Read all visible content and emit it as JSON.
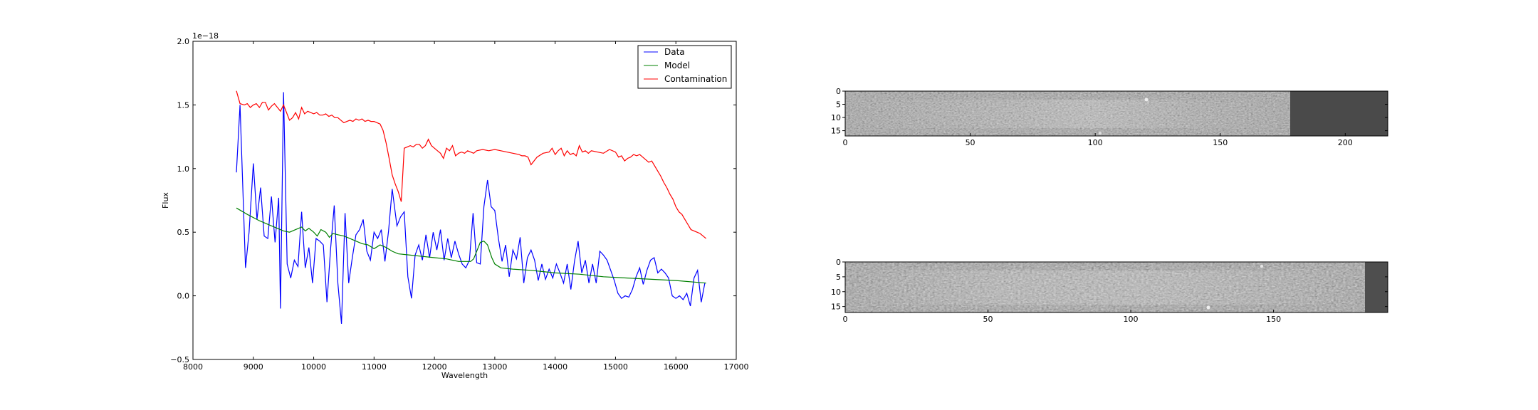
{
  "chart_data": [
    {
      "type": "line",
      "xlabel": "Wavelength",
      "ylabel": "Flux",
      "offset_text": "1e−18",
      "xlim": [
        8000,
        17000
      ],
      "ylim": [
        -0.5,
        2.0
      ],
      "xticks": [
        "8000",
        "9000",
        "10000",
        "11000",
        "12000",
        "13000",
        "14000",
        "15000",
        "16000",
        "17000"
      ],
      "yticks": [
        "−0.5",
        "0.0",
        "0.5",
        "1.0",
        "1.5",
        "2.0"
      ],
      "legend_position": "upper right",
      "grid": false,
      "series": [
        {
          "name": "Data",
          "color": "#0000ff",
          "x": [
            8720,
            8780,
            8870,
            8930,
            9000,
            9060,
            9120,
            9180,
            9240,
            9300,
            9360,
            9420,
            9450,
            9500,
            9560,
            9620,
            9680,
            9740,
            9800,
            9860,
            9920,
            9980,
            10040,
            10100,
            10160,
            10220,
            10280,
            10340,
            10400,
            10460,
            10520,
            10580,
            10640,
            10700,
            10760,
            10820,
            10880,
            10940,
            11000,
            11060,
            11120,
            11180,
            11240,
            11300,
            11380,
            11440,
            11500,
            11560,
            11620,
            11680,
            11740,
            11800,
            11860,
            11920,
            11980,
            12040,
            12100,
            12160,
            12220,
            12280,
            12340,
            12400,
            12460,
            12520,
            12580,
            12640,
            12700,
            12760,
            12820,
            12880,
            12940,
            13000,
            13060,
            13120,
            13180,
            13240,
            13300,
            13360,
            13420,
            13480,
            13540,
            13600,
            13660,
            13720,
            13780,
            13840,
            13900,
            13960,
            14020,
            14080,
            14140,
            14200,
            14260,
            14320,
            14380,
            14440,
            14500,
            14560,
            14620,
            14680,
            14740,
            14800,
            14860,
            14920,
            14980,
            15040,
            15100,
            15160,
            15220,
            15280,
            15340,
            15400,
            15460,
            15520,
            15580,
            15640,
            15700,
            15760,
            15820,
            15880,
            15940,
            16000,
            16060,
            16120,
            16180,
            16240,
            16300,
            16360,
            16420,
            16480
          ],
          "y": [
            0.97,
            1.5,
            0.22,
            0.5,
            1.04,
            0.6,
            0.85,
            0.47,
            0.45,
            0.78,
            0.42,
            0.77,
            -0.1,
            1.6,
            0.25,
            0.14,
            0.28,
            0.23,
            0.66,
            0.22,
            0.38,
            0.1,
            0.45,
            0.43,
            0.4,
            -0.05,
            0.37,
            0.71,
            0.1,
            -0.22,
            0.65,
            0.1,
            0.3,
            0.48,
            0.52,
            0.6,
            0.35,
            0.28,
            0.5,
            0.45,
            0.52,
            0.27,
            0.51,
            0.84,
            0.55,
            0.62,
            0.66,
            0.15,
            -0.02,
            0.32,
            0.4,
            0.28,
            0.48,
            0.3,
            0.5,
            0.36,
            0.52,
            0.28,
            0.45,
            0.3,
            0.43,
            0.33,
            0.25,
            0.22,
            0.28,
            0.65,
            0.26,
            0.25,
            0.7,
            0.91,
            0.7,
            0.67,
            0.45,
            0.27,
            0.4,
            0.15,
            0.36,
            0.29,
            0.46,
            0.1,
            0.3,
            0.36,
            0.28,
            0.12,
            0.25,
            0.13,
            0.21,
            0.14,
            0.25,
            0.18,
            0.1,
            0.25,
            0.05,
            0.27,
            0.43,
            0.18,
            0.28,
            0.1,
            0.25,
            0.1,
            0.35,
            0.32,
            0.28,
            0.2,
            0.12,
            0.02,
            -0.02,
            0.0,
            -0.01,
            0.05,
            0.15,
            0.22,
            0.09,
            0.2,
            0.28,
            0.3,
            0.18,
            0.21,
            0.18,
            0.14,
            0.0,
            -0.02,
            0.0,
            -0.03,
            0.02,
            -0.08,
            0.14,
            0.2,
            -0.05,
            0.1
          ]
        },
        {
          "name": "Model",
          "color": "#008000",
          "x": [
            8720,
            8900,
            9100,
            9300,
            9500,
            9600,
            9700,
            9800,
            9860,
            9920,
            10000,
            10060,
            10120,
            10200,
            10260,
            10320,
            10400,
            10500,
            10600,
            10700,
            10800,
            10900,
            11000,
            11100,
            11200,
            11300,
            11400,
            11600,
            11800,
            12000,
            12200,
            12400,
            12600,
            12650,
            12700,
            12760,
            12820,
            12880,
            12950,
            13000,
            13100,
            13300,
            13600,
            14000,
            14400,
            14800,
            15200,
            15600,
            16000,
            16500
          ],
          "y": [
            0.69,
            0.64,
            0.59,
            0.55,
            0.51,
            0.5,
            0.52,
            0.54,
            0.51,
            0.53,
            0.5,
            0.47,
            0.52,
            0.5,
            0.46,
            0.49,
            0.48,
            0.47,
            0.45,
            0.43,
            0.41,
            0.4,
            0.37,
            0.4,
            0.38,
            0.35,
            0.33,
            0.32,
            0.31,
            0.3,
            0.29,
            0.27,
            0.27,
            0.29,
            0.35,
            0.42,
            0.43,
            0.4,
            0.3,
            0.25,
            0.22,
            0.21,
            0.2,
            0.18,
            0.17,
            0.15,
            0.14,
            0.13,
            0.12,
            0.1
          ]
        },
        {
          "name": "Contamination",
          "color": "#ff0000",
          "x": [
            8720,
            8780,
            8850,
            8900,
            8950,
            9000,
            9050,
            9100,
            9150,
            9200,
            9250,
            9300,
            9350,
            9400,
            9450,
            9500,
            9550,
            9600,
            9650,
            9700,
            9750,
            9800,
            9850,
            9900,
            9950,
            10000,
            10050,
            10100,
            10150,
            10200,
            10250,
            10300,
            10350,
            10400,
            10450,
            10500,
            10550,
            10600,
            10650,
            10700,
            10750,
            10800,
            10850,
            10900,
            10950,
            11000,
            11050,
            11100,
            11150,
            11200,
            11250,
            11300,
            11350,
            11400,
            11450,
            11500,
            11550,
            11600,
            11650,
            11700,
            11750,
            11800,
            11850,
            11900,
            11950,
            12000,
            12050,
            12100,
            12150,
            12200,
            12250,
            12300,
            12350,
            12400,
            12450,
            12500,
            12550,
            12600,
            12650,
            12700,
            12800,
            12900,
            13000,
            13100,
            13200,
            13300,
            13400,
            13450,
            13500,
            13550,
            13600,
            13700,
            13800,
            13900,
            13950,
            14000,
            14050,
            14100,
            14150,
            14200,
            14250,
            14300,
            14350,
            14400,
            14450,
            14500,
            14550,
            14600,
            14700,
            14800,
            14900,
            15000,
            15050,
            15100,
            15150,
            15200,
            15250,
            15300,
            15350,
            15400,
            15450,
            15500,
            15550,
            15600,
            15650,
            15700,
            15750,
            15800,
            15850,
            15900,
            15950,
            16000,
            16050,
            16100,
            16150,
            16200,
            16250,
            16300,
            16350,
            16400,
            16450,
            16500
          ],
          "y": [
            1.61,
            1.51,
            1.5,
            1.51,
            1.48,
            1.5,
            1.51,
            1.48,
            1.52,
            1.52,
            1.46,
            1.49,
            1.51,
            1.48,
            1.45,
            1.5,
            1.44,
            1.38,
            1.4,
            1.44,
            1.39,
            1.48,
            1.43,
            1.45,
            1.44,
            1.43,
            1.44,
            1.42,
            1.42,
            1.43,
            1.41,
            1.42,
            1.4,
            1.4,
            1.38,
            1.36,
            1.37,
            1.38,
            1.37,
            1.39,
            1.38,
            1.39,
            1.37,
            1.38,
            1.37,
            1.37,
            1.36,
            1.35,
            1.3,
            1.2,
            1.08,
            0.95,
            0.88,
            0.82,
            0.74,
            1.16,
            1.17,
            1.18,
            1.17,
            1.19,
            1.19,
            1.16,
            1.18,
            1.23,
            1.18,
            1.16,
            1.14,
            1.12,
            1.08,
            1.16,
            1.14,
            1.18,
            1.1,
            1.12,
            1.13,
            1.12,
            1.14,
            1.13,
            1.12,
            1.14,
            1.15,
            1.14,
            1.15,
            1.14,
            1.13,
            1.12,
            1.11,
            1.1,
            1.1,
            1.09,
            1.03,
            1.09,
            1.12,
            1.13,
            1.16,
            1.11,
            1.14,
            1.16,
            1.1,
            1.14,
            1.11,
            1.12,
            1.1,
            1.18,
            1.13,
            1.14,
            1.12,
            1.14,
            1.13,
            1.12,
            1.15,
            1.13,
            1.09,
            1.1,
            1.06,
            1.08,
            1.09,
            1.11,
            1.1,
            1.11,
            1.09,
            1.07,
            1.05,
            1.06,
            1.02,
            0.98,
            0.94,
            0.89,
            0.85,
            0.8,
            0.76,
            0.7,
            0.66,
            0.64,
            0.6,
            0.56,
            0.52,
            0.51,
            0.5,
            0.49,
            0.47,
            0.45
          ]
        }
      ]
    },
    {
      "type": "heatmap",
      "xlim": [
        0,
        217
      ],
      "ylim": [
        0,
        17
      ],
      "xticks": [
        "0",
        "50",
        "100",
        "150",
        "200"
      ],
      "yticks": [
        "0",
        "5",
        "10",
        "15"
      ],
      "colormap": "gray",
      "flat_region_start_x": 178
    },
    {
      "type": "heatmap",
      "xlim": [
        0,
        190
      ],
      "ylim": [
        0,
        17
      ],
      "xticks": [
        "0",
        "50",
        "100",
        "150"
      ],
      "yticks": [
        "0",
        "5",
        "10",
        "15"
      ],
      "colormap": "gray",
      "flat_region_start_x": 183
    }
  ],
  "colors": {
    "axes": "#000000",
    "background": "#ffffff",
    "flat_region": "#4a4a4a"
  }
}
